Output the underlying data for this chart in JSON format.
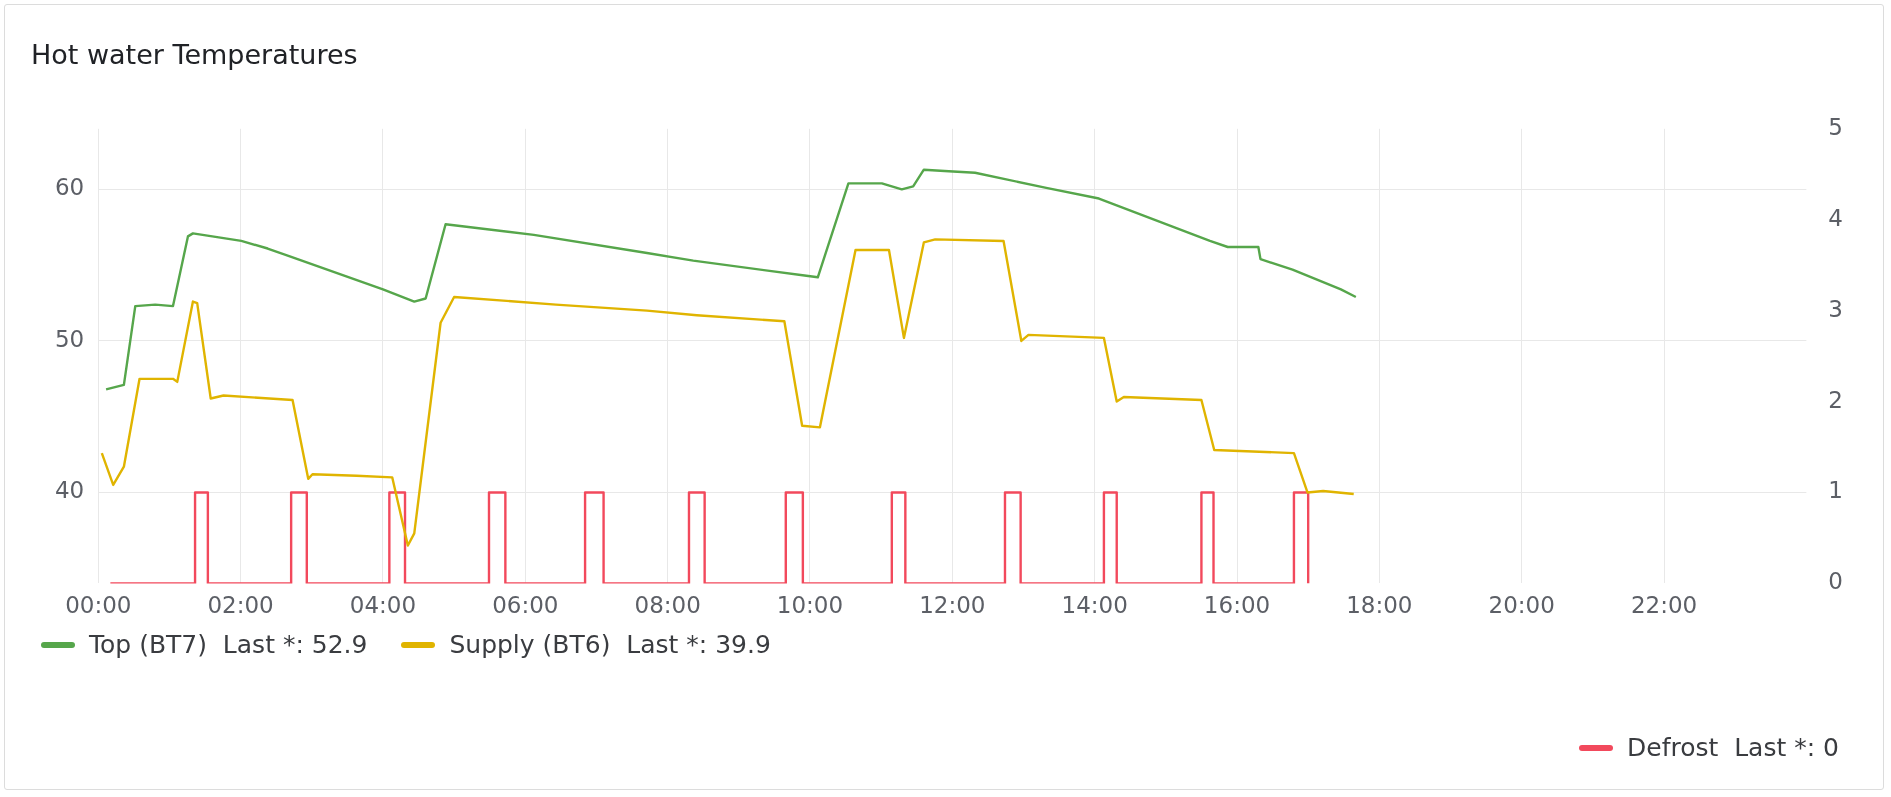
{
  "chart_data": {
    "type": "line",
    "title": "Hot water Temperatures",
    "xlim": [
      0,
      24
    ],
    "xticks": [
      {
        "value": 0,
        "label": "00:00"
      },
      {
        "value": 2,
        "label": "02:00"
      },
      {
        "value": 4,
        "label": "04:00"
      },
      {
        "value": 6,
        "label": "06:00"
      },
      {
        "value": 8,
        "label": "08:00"
      },
      {
        "value": 10,
        "label": "10:00"
      },
      {
        "value": 12,
        "label": "12:00"
      },
      {
        "value": 14,
        "label": "14:00"
      },
      {
        "value": 16,
        "label": "16:00"
      },
      {
        "value": 18,
        "label": "18:00"
      },
      {
        "value": 20,
        "label": "20:00"
      },
      {
        "value": 22,
        "label": "22:00"
      }
    ],
    "ylim": [
      34,
      64
    ],
    "yticks": [
      40,
      50,
      60
    ],
    "y2lim": [
      0,
      5
    ],
    "y2ticks": [
      0,
      1,
      2,
      3,
      4,
      5
    ],
    "grid": true,
    "legend": "bottom",
    "marker": "none",
    "line_style": "solid",
    "series": [
      {
        "name": "Top (BT7)  Last *: 52.9",
        "color": "#56a64b",
        "type": "line",
        "x": [
          0.11,
          0.36,
          0.52,
          0.8,
          1.05,
          1.26,
          1.33,
          2.01,
          2.38,
          4.0,
          4.44,
          4.6,
          4.88,
          6.12,
          7.71,
          8.36,
          9.95,
          10.11,
          10.54,
          11.01,
          11.29,
          11.45,
          11.6,
          11.95,
          12.32,
          13.32,
          14.06,
          15.62,
          15.87,
          16.3,
          16.33,
          16.78,
          17.46,
          17.67
        ],
        "values": [
          46.8,
          47.1,
          52.3,
          52.4,
          52.3,
          56.9,
          57.1,
          56.6,
          56.1,
          53.4,
          52.6,
          52.8,
          57.7,
          57.0,
          55.8,
          55.3,
          54.3,
          54.2,
          60.4,
          60.4,
          60.0,
          60.2,
          61.3,
          61.2,
          61.1,
          60.1,
          59.4,
          56.6,
          56.2,
          56.2,
          55.4,
          54.7,
          53.4,
          52.9
        ]
      },
      {
        "name": "Supply (BT6)  Last *: 39.9",
        "color": "#e0b400",
        "type": "line",
        "x": [
          0.05,
          0.21,
          0.36,
          0.58,
          1.05,
          1.11,
          1.33,
          1.39,
          1.58,
          1.76,
          2.73,
          2.95,
          3.01,
          3.63,
          4.13,
          4.35,
          4.44,
          4.81,
          5.0,
          6.43,
          7.71,
          8.41,
          9.64,
          9.89,
          10.14,
          10.64,
          11.11,
          11.32,
          11.6,
          11.76,
          12.72,
          12.97,
          13.07,
          14.13,
          14.31,
          14.41,
          15.5,
          15.68,
          16.8,
          16.99,
          17.21,
          17.64
        ],
        "values": [
          42.6,
          40.5,
          41.7,
          47.5,
          47.5,
          47.3,
          52.6,
          52.5,
          46.2,
          46.4,
          46.1,
          40.9,
          41.2,
          41.1,
          41.0,
          36.5,
          37.3,
          51.2,
          52.9,
          52.4,
          52.0,
          51.7,
          51.3,
          44.4,
          44.3,
          56.0,
          56.0,
          50.2,
          56.5,
          56.7,
          56.6,
          50.0,
          50.4,
          50.2,
          46.0,
          46.3,
          46.1,
          42.8,
          42.6,
          40.0,
          40.1,
          39.9
        ]
      },
      {
        "name": "Defrost  Last *: 0",
        "color": "#f2495c",
        "type": "step",
        "axis": "y2",
        "x": [
          0.17,
          1.36,
          1.54,
          2.71,
          2.93,
          4.09,
          4.31,
          5.49,
          5.72,
          6.84,
          7.1,
          8.3,
          8.52,
          9.66,
          9.9,
          11.15,
          11.34,
          12.74,
          12.96,
          14.13,
          14.31,
          15.5,
          15.67,
          16.8,
          17.0
        ],
        "values": [
          0,
          1,
          0,
          1,
          0,
          1,
          0,
          1,
          0,
          1,
          0,
          1,
          0,
          1,
          0,
          1,
          0,
          1,
          0,
          1,
          0,
          1,
          0,
          1,
          0
        ]
      }
    ]
  }
}
